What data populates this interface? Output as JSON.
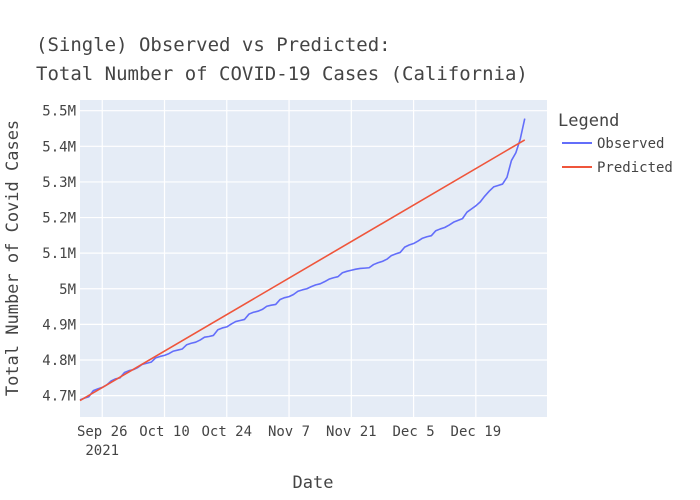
{
  "chart_data": {
    "type": "line",
    "title_lines": [
      "(Single) Observed vs Predicted:",
      "Total Number of COVID-19 Cases (California)"
    ],
    "xlabel": "Date",
    "ylabel": "Total Number of Covid Cases",
    "xlim": [
      "2021-09-21",
      "2022-01-04"
    ],
    "ylim": [
      4640000,
      5530000
    ],
    "x_ticks": [
      {
        "date": "2021-09-26",
        "label": "Sep 26",
        "sublabel": "2021"
      },
      {
        "date": "2021-10-10",
        "label": "Oct 10"
      },
      {
        "date": "2021-10-24",
        "label": "Oct 24"
      },
      {
        "date": "2021-11-07",
        "label": "Nov 7"
      },
      {
        "date": "2021-11-21",
        "label": "Nov 21"
      },
      {
        "date": "2021-12-05",
        "label": "Dec 5"
      },
      {
        "date": "2021-12-19",
        "label": "Dec 19"
      }
    ],
    "y_ticks": [
      {
        "value": 4700000,
        "label": "4.7M"
      },
      {
        "value": 4800000,
        "label": "4.8M"
      },
      {
        "value": 4900000,
        "label": "4.9M"
      },
      {
        "value": 5000000,
        "label": "5M"
      },
      {
        "value": 5100000,
        "label": "5.1M"
      },
      {
        "value": 5200000,
        "label": "5.2M"
      },
      {
        "value": 5300000,
        "label": "5.3M"
      },
      {
        "value": 5400000,
        "label": "5.4M"
      },
      {
        "value": 5500000,
        "label": "5.5M"
      }
    ],
    "legend": {
      "title": "Legend",
      "position": "right"
    },
    "series": [
      {
        "name": "Observed",
        "color": "#636efa",
        "points": [
          [
            "2021-09-21",
            4688000
          ],
          [
            "2021-09-22",
            4693000
          ],
          [
            "2021-09-23",
            4697000
          ],
          [
            "2021-09-24",
            4714000
          ],
          [
            "2021-09-25",
            4719000
          ],
          [
            "2021-09-26",
            4723000
          ],
          [
            "2021-09-27",
            4730000
          ],
          [
            "2021-09-28",
            4741000
          ],
          [
            "2021-09-29",
            4747000
          ],
          [
            "2021-09-30",
            4750000
          ],
          [
            "2021-10-01",
            4765000
          ],
          [
            "2021-10-02",
            4770000
          ],
          [
            "2021-10-03",
            4773000
          ],
          [
            "2021-10-04",
            4779000
          ],
          [
            "2021-10-05",
            4788000
          ],
          [
            "2021-10-06",
            4791000
          ],
          [
            "2021-10-07",
            4794000
          ],
          [
            "2021-10-08",
            4806000
          ],
          [
            "2021-10-09",
            4810000
          ],
          [
            "2021-10-10",
            4813000
          ],
          [
            "2021-10-11",
            4818000
          ],
          [
            "2021-10-12",
            4825000
          ],
          [
            "2021-10-13",
            4828000
          ],
          [
            "2021-10-14",
            4831000
          ],
          [
            "2021-10-15",
            4843000
          ],
          [
            "2021-10-16",
            4847000
          ],
          [
            "2021-10-17",
            4850000
          ],
          [
            "2021-10-18",
            4856000
          ],
          [
            "2021-10-19",
            4864000
          ],
          [
            "2021-10-20",
            4866000
          ],
          [
            "2021-10-21",
            4869000
          ],
          [
            "2021-10-22",
            4885000
          ],
          [
            "2021-10-23",
            4890000
          ],
          [
            "2021-10-24",
            4893000
          ],
          [
            "2021-10-25",
            4901000
          ],
          [
            "2021-10-26",
            4908000
          ],
          [
            "2021-10-27",
            4911000
          ],
          [
            "2021-10-28",
            4914000
          ],
          [
            "2021-10-29",
            4929000
          ],
          [
            "2021-10-30",
            4934000
          ],
          [
            "2021-10-31",
            4937000
          ],
          [
            "2021-11-01",
            4942000
          ],
          [
            "2021-11-02",
            4951000
          ],
          [
            "2021-11-03",
            4954000
          ],
          [
            "2021-11-04",
            4956000
          ],
          [
            "2021-11-05",
            4970000
          ],
          [
            "2021-11-06",
            4975000
          ],
          [
            "2021-11-07",
            4978000
          ],
          [
            "2021-11-08",
            4984000
          ],
          [
            "2021-11-09",
            4993000
          ],
          [
            "2021-11-10",
            4997000
          ],
          [
            "2021-11-11",
            5000000
          ],
          [
            "2021-11-12",
            5006000
          ],
          [
            "2021-11-13",
            5011000
          ],
          [
            "2021-11-14",
            5014000
          ],
          [
            "2021-11-15",
            5020000
          ],
          [
            "2021-11-16",
            5027000
          ],
          [
            "2021-11-17",
            5031000
          ],
          [
            "2021-11-18",
            5034000
          ],
          [
            "2021-11-19",
            5045000
          ],
          [
            "2021-11-20",
            5049000
          ],
          [
            "2021-11-21",
            5052000
          ],
          [
            "2021-11-22",
            5055000
          ],
          [
            "2021-11-23",
            5057000
          ],
          [
            "2021-11-24",
            5058000
          ],
          [
            "2021-11-25",
            5059000
          ],
          [
            "2021-11-26",
            5068000
          ],
          [
            "2021-11-27",
            5073000
          ],
          [
            "2021-11-28",
            5077000
          ],
          [
            "2021-11-29",
            5083000
          ],
          [
            "2021-11-30",
            5093000
          ],
          [
            "2021-12-01",
            5098000
          ],
          [
            "2021-12-02",
            5102000
          ],
          [
            "2021-12-03",
            5117000
          ],
          [
            "2021-12-04",
            5123000
          ],
          [
            "2021-12-05",
            5127000
          ],
          [
            "2021-12-06",
            5134000
          ],
          [
            "2021-12-07",
            5142000
          ],
          [
            "2021-12-08",
            5146000
          ],
          [
            "2021-12-09",
            5149000
          ],
          [
            "2021-12-10",
            5163000
          ],
          [
            "2021-12-11",
            5168000
          ],
          [
            "2021-12-12",
            5172000
          ],
          [
            "2021-12-13",
            5179000
          ],
          [
            "2021-12-14",
            5187000
          ],
          [
            "2021-12-15",
            5192000
          ],
          [
            "2021-12-16",
            5197000
          ],
          [
            "2021-12-17",
            5215000
          ],
          [
            "2021-12-18",
            5224000
          ],
          [
            "2021-12-19",
            5233000
          ],
          [
            "2021-12-20",
            5244000
          ],
          [
            "2021-12-21",
            5260000
          ],
          [
            "2021-12-22",
            5274000
          ],
          [
            "2021-12-23",
            5286000
          ],
          [
            "2021-12-24",
            5290000
          ],
          [
            "2021-12-25",
            5294000
          ],
          [
            "2021-12-26",
            5313000
          ],
          [
            "2021-12-27",
            5360000
          ],
          [
            "2021-12-28",
            5382000
          ],
          [
            "2021-12-29",
            5421000
          ],
          [
            "2021-12-30",
            5478000
          ]
        ]
      },
      {
        "name": "Predicted",
        "color": "#ef553b",
        "points": [
          [
            "2021-09-21",
            4686000
          ],
          [
            "2021-12-30",
            5418000
          ]
        ]
      }
    ]
  }
}
